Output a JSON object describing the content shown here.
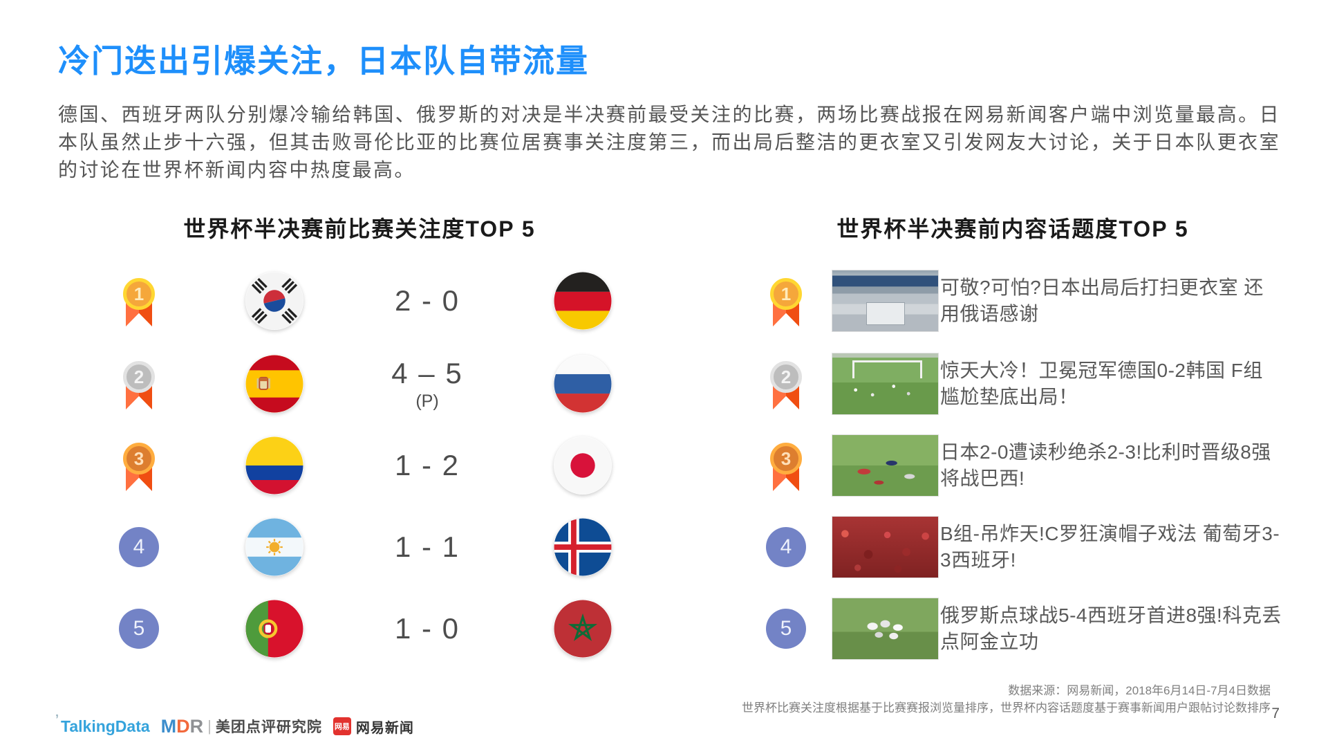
{
  "slide": {
    "title": "冷门迭出引爆关注，日本队自带流量",
    "paragraph": "德国、西班牙两队分别爆冷输给韩国、俄罗斯的对决是半决赛前最受关注的比赛，两场比赛战报在网易新闻客户端中浏览量最高。日本队虽然止步十六强，但其击败哥伦比亚的比赛位居赛事关注度第三，而出局后整洁的更衣室又引发网友大讨论，关于日本队更衣室的讨论在世界杯新闻内容中热度最高。",
    "page_number": "7"
  },
  "match_ranking": {
    "header": "世界杯半决赛前比赛关注度TOP 5",
    "rows": [
      {
        "rank": "1",
        "medal": "gold",
        "home_team": "south-korea",
        "home_flag": "kr",
        "score": "2 - 0",
        "score_note": "",
        "away_team": "germany",
        "away_flag": "de"
      },
      {
        "rank": "2",
        "medal": "silver",
        "home_team": "spain",
        "home_flag": "es",
        "score": "4 – 5",
        "score_note": "(P)",
        "away_team": "russia",
        "away_flag": "ru"
      },
      {
        "rank": "3",
        "medal": "bronze",
        "home_team": "colombia",
        "home_flag": "co",
        "score": "1 - 2",
        "score_note": "",
        "away_team": "japan",
        "away_flag": "jp"
      },
      {
        "rank": "4",
        "medal": "blue",
        "home_team": "argentina",
        "home_flag": "ar",
        "score": "1 - 1",
        "score_note": "",
        "away_team": "iceland",
        "away_flag": "is"
      },
      {
        "rank": "5",
        "medal": "blue",
        "home_team": "portugal",
        "home_flag": "pt",
        "score": "1 - 0",
        "score_note": "",
        "away_team": "morocco",
        "away_flag": "ma"
      }
    ]
  },
  "topic_ranking": {
    "header": "世界杯半决赛前内容话题度TOP 5",
    "rows": [
      {
        "rank": "1",
        "medal": "gold",
        "thumbnail": "japan-locker-room",
        "headline": "可敬?可怕?日本出局后打扫更衣室 还用俄语感谢"
      },
      {
        "rank": "2",
        "medal": "silver",
        "thumbnail": "germany-korea-match",
        "headline": "惊天大冷！卫冕冠军德国0-2韩国 F组尴尬垫底出局！"
      },
      {
        "rank": "3",
        "medal": "bronze",
        "thumbnail": "japan-belgium-match",
        "headline": "日本2-0遭读秒绝杀2-3!比利时晋级8强将战巴西!"
      },
      {
        "rank": "4",
        "medal": "blue",
        "thumbnail": "portugal-spain-fans",
        "headline": "B组-吊炸天!C罗狂演帽子戏法 葡萄牙3-3西班牙!"
      },
      {
        "rank": "5",
        "medal": "blue",
        "thumbnail": "russia-celebration",
        "headline": "俄罗斯点球战5-4西班牙首进8强!科克丢点阿金立功"
      }
    ]
  },
  "footer": {
    "source_line1": "数据来源：网易新闻，2018年6月14日-7月4日数据",
    "source_line2": "世界杯比赛关注度根据基于比赛赛报浏览量排序，世界杯内容话题度基于赛事新闻用户跟帖讨论数排序",
    "logos": {
      "talkingdata": "TalkingData",
      "mdr_m": "M",
      "mdr_d": "D",
      "mdr_r": "R",
      "separator": "|",
      "meituan": "美团点评研究院",
      "netease_badge": "网易",
      "netease": "网易新闻"
    }
  },
  "colors": {
    "title_blue": "#1E8FFB",
    "ribbon_orange": "#F04E12",
    "rank_blue": "#7383C6",
    "body_gray": "#555555",
    "netease_red": "#E2322E"
  }
}
